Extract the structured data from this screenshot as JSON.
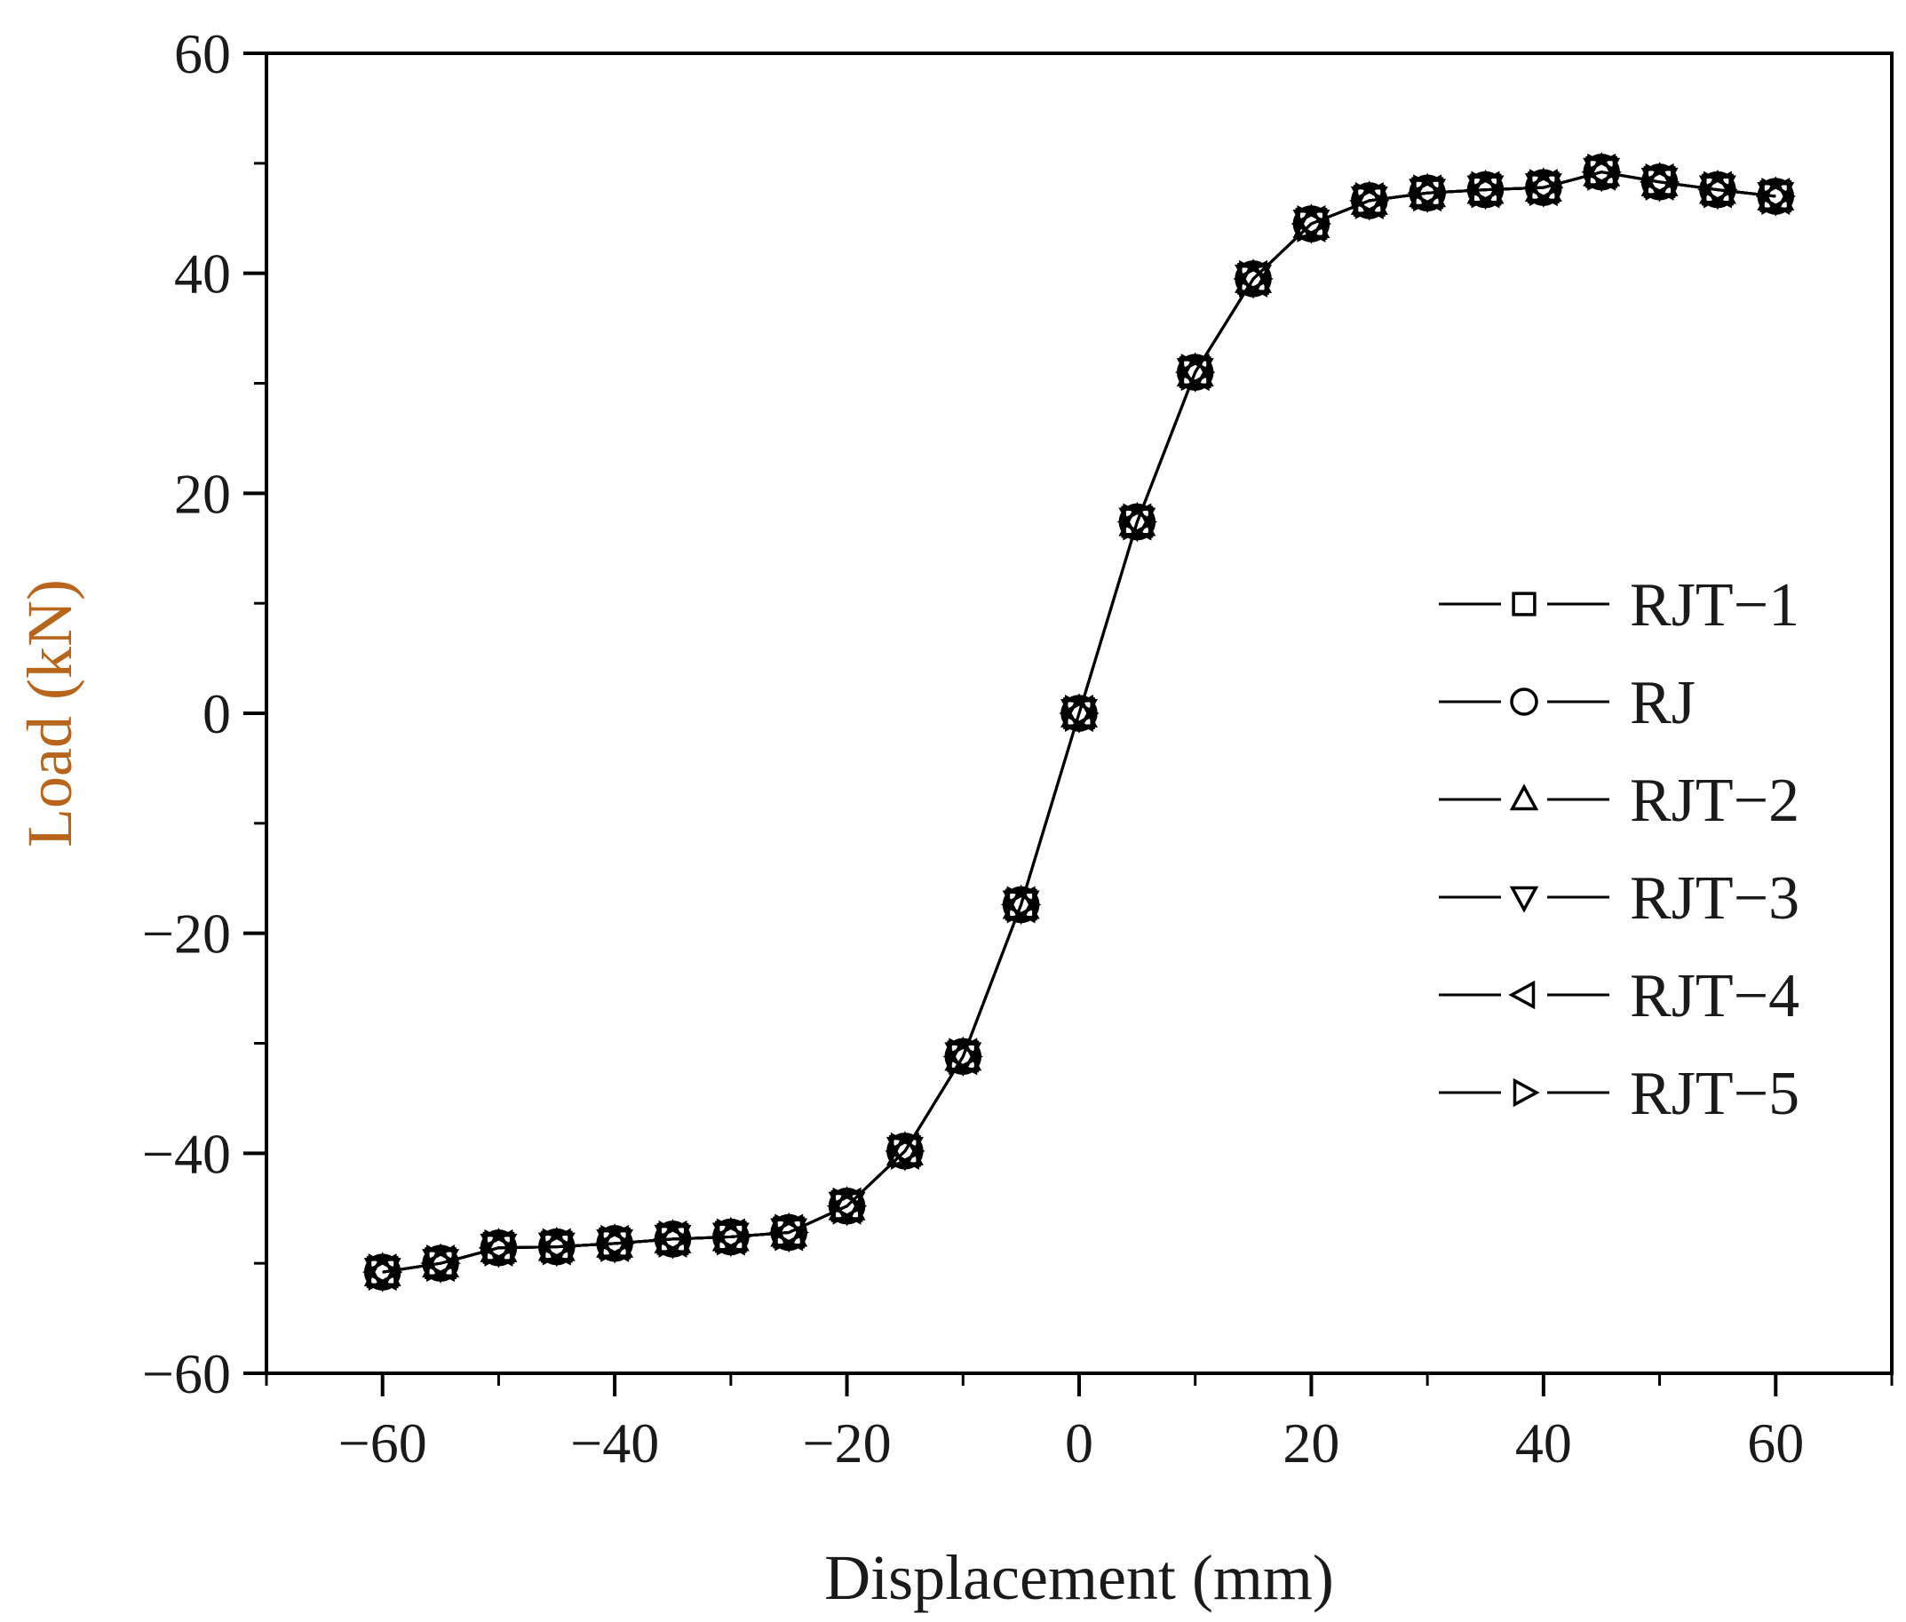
{
  "chart_data": {
    "type": "line",
    "title": "",
    "xlabel": "Displacement (mm)",
    "ylabel": "Load (kN)",
    "xlim": [
      -70,
      70
    ],
    "ylim": [
      -60,
      60
    ],
    "xticks": [
      -60,
      -40,
      -20,
      0,
      20,
      40,
      60
    ],
    "xtick_labels": [
      "−60",
      "−40",
      "−20",
      "0",
      "20",
      "40",
      "60"
    ],
    "yticks": [
      -60,
      -40,
      -20,
      0,
      20,
      40,
      60
    ],
    "ytick_labels": [
      "−60",
      "−40",
      "−20",
      "0",
      "20",
      "40",
      "60"
    ],
    "grid": false,
    "legend_position": "right",
    "colors": {
      "line": "#000000",
      "axis": "#000000",
      "xlabel": "#1a1a1a",
      "ylabel": "#b8651b"
    },
    "x": [
      -60,
      -55,
      -50,
      -45,
      -40,
      -35,
      -30,
      -25,
      -20,
      -15,
      -10,
      -5,
      0,
      5,
      10,
      15,
      20,
      25,
      30,
      35,
      40,
      45,
      50,
      55,
      60
    ],
    "series": [
      {
        "name": "RJT−1",
        "marker": "square",
        "values": [
          -50.8,
          -50.0,
          -48.6,
          -48.5,
          -48.2,
          -47.8,
          -47.6,
          -47.2,
          -44.8,
          -39.8,
          -31.2,
          -17.4,
          0,
          17.4,
          31.0,
          39.5,
          44.5,
          46.6,
          47.3,
          47.6,
          47.8,
          49.2,
          48.3,
          47.6,
          47.0
        ]
      },
      {
        "name": "RJ",
        "marker": "circle",
        "values": [
          -50.8,
          -50.0,
          -48.6,
          -48.5,
          -48.2,
          -47.8,
          -47.6,
          -47.2,
          -44.8,
          -39.8,
          -31.2,
          -17.4,
          0,
          17.4,
          31.0,
          39.5,
          44.5,
          46.6,
          47.3,
          47.6,
          47.8,
          49.2,
          48.3,
          47.6,
          47.0
        ]
      },
      {
        "name": "RJT−2",
        "marker": "triangle-up",
        "values": [
          -50.8,
          -50.0,
          -48.6,
          -48.5,
          -48.2,
          -47.8,
          -47.6,
          -47.2,
          -44.8,
          -39.8,
          -31.2,
          -17.4,
          0,
          17.4,
          31.0,
          39.5,
          44.5,
          46.6,
          47.3,
          47.6,
          47.8,
          49.2,
          48.3,
          47.6,
          47.0
        ]
      },
      {
        "name": "RJT−3",
        "marker": "triangle-down",
        "values": [
          -50.8,
          -50.0,
          -48.6,
          -48.5,
          -48.2,
          -47.8,
          -47.6,
          -47.2,
          -44.8,
          -39.8,
          -31.2,
          -17.4,
          0,
          17.4,
          31.0,
          39.5,
          44.5,
          46.6,
          47.3,
          47.6,
          47.8,
          49.2,
          48.3,
          47.6,
          47.0
        ]
      },
      {
        "name": "RJT−4",
        "marker": "triangle-left",
        "values": [
          -50.8,
          -50.0,
          -48.6,
          -48.5,
          -48.2,
          -47.8,
          -47.6,
          -47.2,
          -44.8,
          -39.8,
          -31.2,
          -17.4,
          0,
          17.4,
          31.0,
          39.5,
          44.5,
          46.6,
          47.3,
          47.6,
          47.8,
          49.2,
          48.3,
          47.6,
          47.0
        ]
      },
      {
        "name": "RJT−5",
        "marker": "triangle-right",
        "values": [
          -50.8,
          -50.0,
          -48.6,
          -48.5,
          -48.2,
          -47.8,
          -47.6,
          -47.2,
          -44.8,
          -39.8,
          -31.2,
          -17.4,
          0,
          17.4,
          31.0,
          39.5,
          44.5,
          46.6,
          47.3,
          47.6,
          47.8,
          49.2,
          48.3,
          47.6,
          47.0
        ]
      }
    ]
  }
}
